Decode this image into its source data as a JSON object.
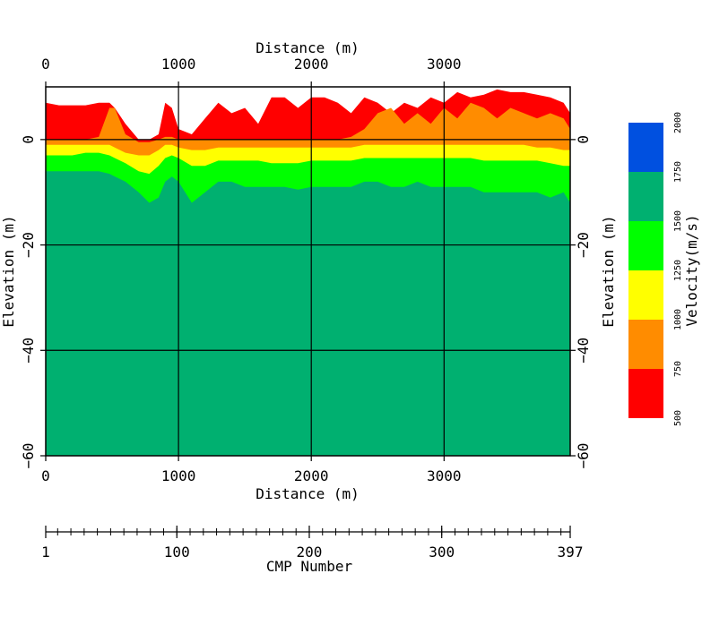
{
  "chart_data": {
    "type": "heatmap",
    "title": "",
    "x_axis_top": {
      "label": "Distance (m)",
      "range": [
        0,
        3950
      ],
      "ticks": [
        "0",
        "1000",
        "2000",
        "3000"
      ]
    },
    "x_axis_bottom": {
      "label": "Distance (m)",
      "range": [
        0,
        3950
      ],
      "ticks": [
        "0",
        "1000",
        "2000",
        "3000"
      ]
    },
    "y_axis_left": {
      "label": "Elevation (m)",
      "range": [
        -60,
        10
      ],
      "ticks": [
        "0",
        "−20",
        "−40",
        "−60"
      ]
    },
    "y_axis_right": {
      "label": "Elevation (m)",
      "range": [
        -60,
        10
      ],
      "ticks": [
        "0",
        "−20",
        "−40",
        "−60"
      ]
    },
    "cmp_axis": {
      "label": "CMP Number",
      "range": [
        1,
        397
      ],
      "ticks": [
        "1",
        "100",
        "200",
        "300",
        "397"
      ]
    },
    "grid": true,
    "colorbar": {
      "label": "Velocity(m/s)",
      "position": "right",
      "bins": [
        {
          "min": 500,
          "max": 750,
          "color": "#ff0000"
        },
        {
          "min": 750,
          "max": 1000,
          "color": "#ff8c00"
        },
        {
          "min": 1000,
          "max": 1250,
          "color": "#ffff00"
        },
        {
          "min": 1250,
          "max": 1500,
          "color": "#00ff00"
        },
        {
          "min": 1500,
          "max": 1750,
          "color": "#00b070"
        },
        {
          "min": 1750,
          "max": 2000,
          "color": "#0050e0"
        }
      ],
      "tick_labels": [
        "500",
        "750",
        "1000",
        "1250",
        "1500",
        "1750",
        "2000"
      ]
    },
    "profile": {
      "distance": [
        0,
        100,
        200,
        300,
        400,
        480,
        520,
        600,
        700,
        780,
        850,
        900,
        950,
        1000,
        1100,
        1200,
        1300,
        1400,
        1500,
        1600,
        1700,
        1800,
        1900,
        2000,
        2100,
        2200,
        2300,
        2400,
        2500,
        2600,
        2700,
        2800,
        2900,
        3000,
        3100,
        3200,
        3300,
        3400,
        3500,
        3600,
        3700,
        3800,
        3900,
        3950
      ],
      "surface_elevation": [
        7,
        6.5,
        6.5,
        6.5,
        7,
        7,
        6,
        3,
        0,
        0,
        1,
        7,
        6,
        2,
        1,
        4,
        7,
        5,
        6,
        3,
        8,
        8,
        6,
        8,
        8,
        7,
        5,
        8,
        7,
        5,
        7,
        6,
        8,
        7,
        9,
        8,
        8.5,
        9.5,
        9,
        9,
        8.5,
        8,
        7,
        5
      ],
      "v750_elevation": [
        0,
        0,
        0,
        0,
        0.5,
        6,
        6,
        1,
        -0.5,
        -0.5,
        0,
        0.5,
        0.5,
        0,
        0,
        0,
        0,
        0,
        0,
        0,
        0,
        0,
        0,
        0,
        0,
        0,
        0.5,
        2,
        5,
        6,
        3,
        5,
        3,
        6,
        4,
        7,
        6,
        4,
        6,
        5,
        4,
        5,
        4,
        2
      ],
      "v1000_elevation": [
        -1,
        -1,
        -1,
        -1,
        -1,
        -1,
        -1.5,
        -2.5,
        -3,
        -3,
        -2,
        -1,
        -1,
        -1.5,
        -2,
        -2,
        -1.5,
        -1.5,
        -1.5,
        -1.5,
        -1.5,
        -1.5,
        -1.5,
        -1.5,
        -1.5,
        -1.5,
        -1.5,
        -1,
        -1,
        -1,
        -1,
        -1,
        -1,
        -1,
        -1,
        -1,
        -1,
        -1,
        -1,
        -1,
        -1.5,
        -1.5,
        -2,
        -2
      ],
      "v1250_elevation": [
        -3,
        -3,
        -3,
        -2.5,
        -2.5,
        -3,
        -3.5,
        -4.5,
        -6,
        -6.5,
        -5,
        -3.5,
        -3,
        -3.5,
        -5,
        -5,
        -4,
        -4,
        -4,
        -4,
        -4.5,
        -4.5,
        -4.5,
        -4,
        -4,
        -4,
        -4,
        -3.5,
        -3.5,
        -3.5,
        -3.5,
        -3.5,
        -3.5,
        -3.5,
        -3.5,
        -3.5,
        -4,
        -4,
        -4,
        -4,
        -4,
        -4.5,
        -5,
        -5
      ],
      "v1500_elevation": [
        -6,
        -6,
        -6,
        -6,
        -6,
        -6.5,
        -7,
        -8,
        -10,
        -12,
        -11,
        -8,
        -7,
        -8,
        -12,
        -10,
        -8,
        -8,
        -9,
        -9,
        -9,
        -9,
        -9.5,
        -9,
        -9,
        -9,
        -9,
        -8,
        -8,
        -9,
        -9,
        -8,
        -9,
        -9,
        -9,
        -9,
        -10,
        -10,
        -10,
        -10,
        -10,
        -11,
        -10,
        -12
      ]
    }
  }
}
